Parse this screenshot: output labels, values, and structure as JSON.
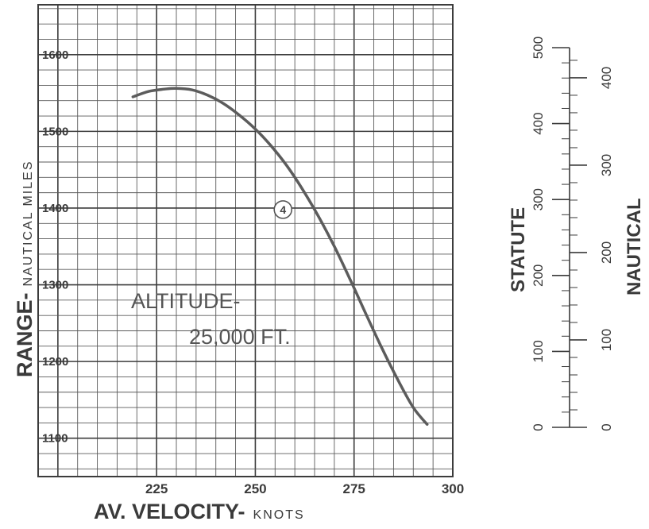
{
  "chart_data": [
    {
      "type": "line",
      "xlabel_main": "AV. VELOCITY-",
      "xlabel_unit": "KNOTS",
      "ylabel_main": "RANGE-",
      "ylabel_unit": "NAUTICAL MILES",
      "xlim": [
        195,
        300
      ],
      "ylim": [
        1050,
        1665
      ],
      "xticks": [
        225,
        250,
        275,
        300
      ],
      "yticks": [
        1100,
        1200,
        1300,
        1400,
        1500,
        1600
      ],
      "grid": true,
      "annotations": [
        "ALTITUDE-",
        "25,000 FT."
      ],
      "series": [
        {
          "marker_label": "4",
          "marker_point": {
            "x": 257,
            "y": 1398
          },
          "x": [
            219,
            223,
            227,
            230,
            234,
            238,
            242,
            246,
            250,
            254,
            258,
            262,
            266,
            270,
            274,
            278,
            282,
            286,
            290,
            293.5
          ],
          "y": [
            1545,
            1552,
            1555,
            1556,
            1554,
            1547,
            1536,
            1521,
            1503,
            1481,
            1455,
            1424,
            1389,
            1350,
            1307,
            1262,
            1218,
            1177,
            1140,
            1118
          ]
        }
      ]
    },
    {
      "type": "scale",
      "title": "STATUTE",
      "ticks": [
        "0",
        "100",
        "200",
        "300",
        "400",
        "500"
      ],
      "range": [
        0,
        500
      ]
    },
    {
      "type": "scale",
      "title": "NAUTICAL",
      "ticks": [
        "0",
        "100",
        "200",
        "300",
        "400"
      ],
      "range": [
        0,
        434.5
      ]
    }
  ]
}
